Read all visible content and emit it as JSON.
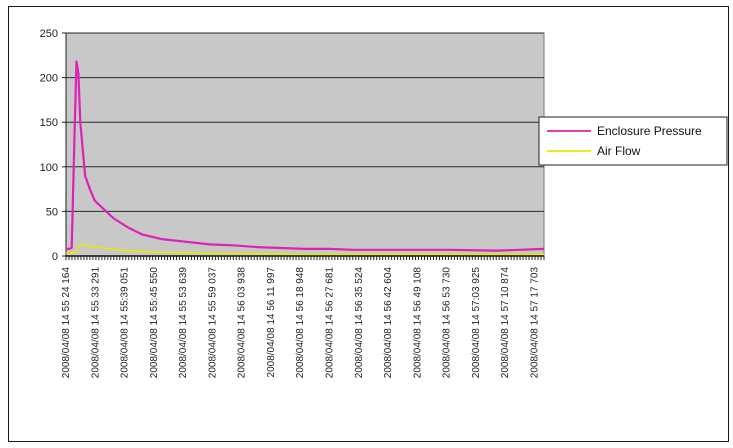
{
  "chart_data": {
    "type": "line",
    "title": "",
    "xlabel": "",
    "ylabel": "",
    "ylim": [
      0,
      250
    ],
    "yticks": [
      0,
      50,
      100,
      150,
      200,
      250
    ],
    "grid": true,
    "legend_position": "right",
    "x_tick_labels": [
      "2008/04/08 14 55 24 164",
      "2008/04/08 14 55 33 291",
      "2008/04/08 14 55:39 051",
      "2008/04/08 14 55:45 550",
      "2008/04/08 14 55 53 639",
      "2008/04/08 14 55 59 037",
      "2008/04/08 14 56 03 938",
      "2008/04/08 14 56 11 997",
      "2008/04/08 14 56 18 948",
      "2008/04/08 14 56 27 681",
      "2008/04/08 14 56 35 524",
      "2008/04/08 14 56 42 604",
      "2008/04/08 14 56 49 108",
      "2008/04/08 14 56 53 730",
      "2008/04/08 14 57:03 925",
      "2008/04/08 14 57 10 874",
      "2008/04/08 14 57 17 703"
    ],
    "series": [
      {
        "name": "Enclosure Pressure",
        "color": "#e020b8",
        "x_fraction": [
          0,
          0.006,
          0.012,
          0.018,
          0.022,
          0.026,
          0.03,
          0.035,
          0.04,
          0.05,
          0.06,
          0.08,
          0.1,
          0.13,
          0.16,
          0.2,
          0.25,
          0.3,
          0.35,
          0.4,
          0.45,
          0.5,
          0.55,
          0.6,
          0.7,
          0.8,
          0.9,
          0.95,
          1.0
        ],
        "values": [
          8,
          8,
          9,
          140,
          218,
          205,
          150,
          120,
          90,
          75,
          62,
          52,
          42,
          32,
          24,
          19,
          16,
          13,
          12,
          10,
          9,
          8,
          8,
          7,
          7,
          7,
          6,
          7,
          8
        ]
      },
      {
        "name": "Air Flow",
        "color": "#e8e800",
        "x_fraction": [
          0,
          0.02,
          0.03,
          0.05,
          0.08,
          0.12,
          0.2,
          0.3,
          0.5,
          0.7,
          1.0
        ],
        "values": [
          3,
          4,
          13,
          11,
          9,
          6,
          4,
          3,
          2,
          2,
          2
        ]
      }
    ]
  }
}
